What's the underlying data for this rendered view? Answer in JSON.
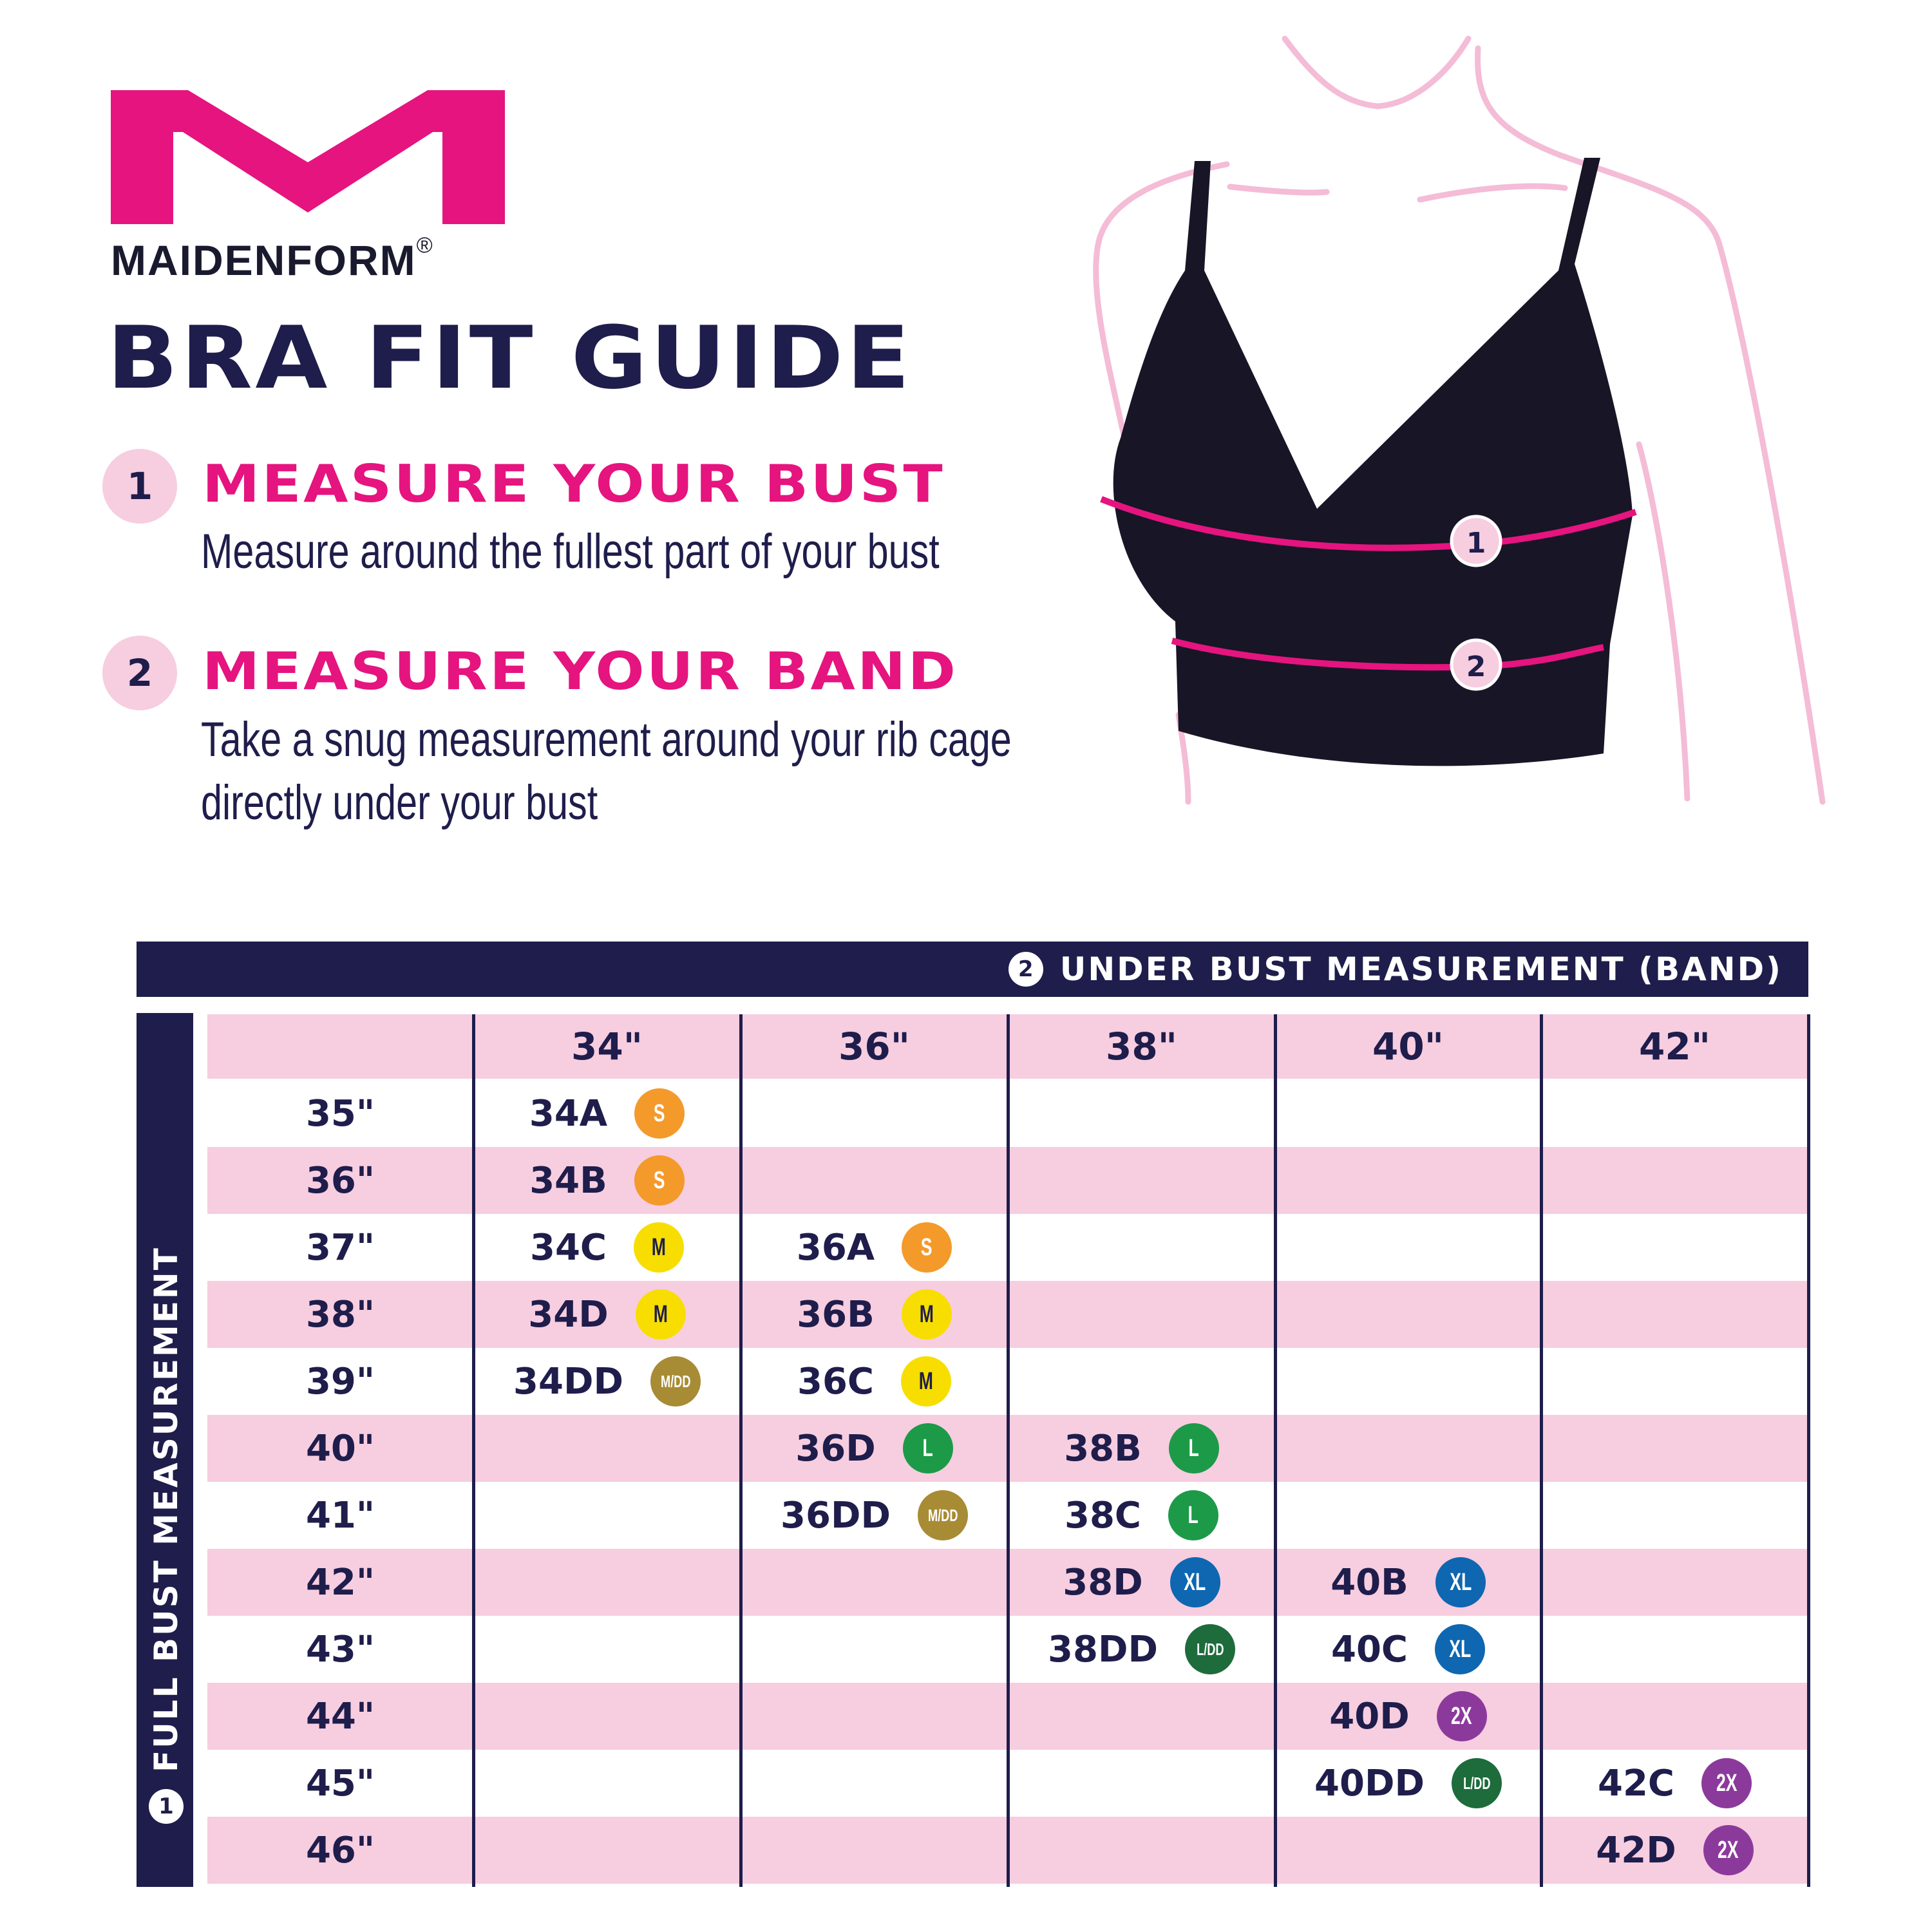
{
  "brand": {
    "name": "MAIDENFORM",
    "registered": "®",
    "logo_color": "#e5147f"
  },
  "title": "BRA FIT GUIDE",
  "steps": [
    {
      "number": "1",
      "heading": "MEASURE YOUR BUST",
      "text": [
        "Measure around the fullest part of your bust"
      ]
    },
    {
      "number": "2",
      "heading": "MEASURE YOUR BAND",
      "text": [
        "Take a snug measurement around your rib cage",
        "directly under your bust"
      ]
    }
  ],
  "illustration": {
    "marker_1": "1",
    "marker_2": "2"
  },
  "table": {
    "band_header": {
      "number": "2",
      "label": "UNDER BUST MEASUREMENT (BAND)"
    },
    "bust_header": {
      "number": "1",
      "label": "FULL BUST MEASUREMENT"
    },
    "columns": [
      "34\"",
      "36\"",
      "38\"",
      "40\"",
      "42\""
    ],
    "rows": [
      {
        "bust": "35\"",
        "cells": [
          {
            "size": "34A",
            "badge": "S"
          },
          null,
          null,
          null,
          null
        ]
      },
      {
        "bust": "36\"",
        "cells": [
          {
            "size": "34B",
            "badge": "S"
          },
          null,
          null,
          null,
          null
        ]
      },
      {
        "bust": "37\"",
        "cells": [
          {
            "size": "34C",
            "badge": "M"
          },
          {
            "size": "36A",
            "badge": "S"
          },
          null,
          null,
          null
        ]
      },
      {
        "bust": "38\"",
        "cells": [
          {
            "size": "34D",
            "badge": "M"
          },
          {
            "size": "36B",
            "badge": "M"
          },
          null,
          null,
          null
        ]
      },
      {
        "bust": "39\"",
        "cells": [
          {
            "size": "34DD",
            "badge": "M/DD"
          },
          {
            "size": "36C",
            "badge": "M"
          },
          null,
          null,
          null
        ]
      },
      {
        "bust": "40\"",
        "cells": [
          null,
          {
            "size": "36D",
            "badge": "L"
          },
          {
            "size": "38B",
            "badge": "L"
          },
          null,
          null
        ]
      },
      {
        "bust": "41\"",
        "cells": [
          null,
          {
            "size": "36DD",
            "badge": "M/DD"
          },
          {
            "size": "38C",
            "badge": "L"
          },
          null,
          null
        ]
      },
      {
        "bust": "42\"",
        "cells": [
          null,
          null,
          {
            "size": "38D",
            "badge": "XL"
          },
          {
            "size": "40B",
            "badge": "XL"
          },
          null
        ]
      },
      {
        "bust": "43\"",
        "cells": [
          null,
          null,
          {
            "size": "38DD",
            "badge": "L/DD"
          },
          {
            "size": "40C",
            "badge": "XL"
          },
          null
        ]
      },
      {
        "bust": "44\"",
        "cells": [
          null,
          null,
          null,
          {
            "size": "40D",
            "badge": "2X"
          },
          null
        ]
      },
      {
        "bust": "45\"",
        "cells": [
          null,
          null,
          null,
          {
            "size": "40DD",
            "badge": "L/DD"
          },
          {
            "size": "42C",
            "badge": "2X"
          }
        ]
      },
      {
        "bust": "46\"",
        "cells": [
          null,
          null,
          null,
          null,
          {
            "size": "42D",
            "badge": "2X"
          }
        ]
      }
    ],
    "badge_colors": {
      "S": "#f39a2b",
      "M": "#f7de00",
      "M/DD": "#a88b35",
      "L": "#1c9a48",
      "XL": "#0e67b0",
      "L/DD": "#1e6b3c",
      "2X": "#8b3a9c"
    },
    "colors": {
      "navy": "#1e1d4b",
      "pink_row": "#f7cde0"
    }
  }
}
